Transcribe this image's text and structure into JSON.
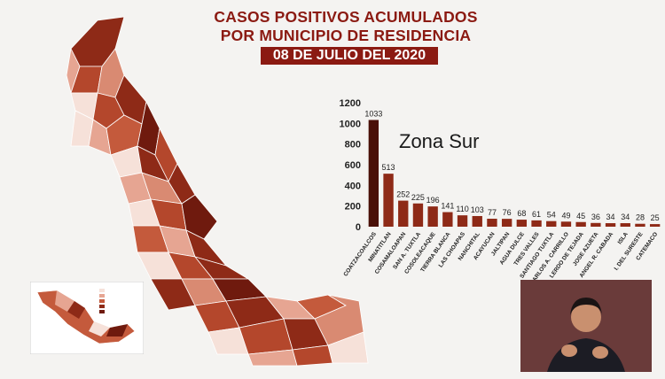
{
  "header": {
    "title_line1": "CASOS POSITIVOS ACUMULADOS",
    "title_line2": "POR MUNICIPIO DE RESIDENCIA",
    "date": "08 DE JULIO DEL 2020"
  },
  "chart_note": "Zona Sur",
  "colors": {
    "brand": "#8b1a12",
    "bar_top": "#4a1008",
    "bar": "#8e2a17",
    "map_dark": "#7a1f10",
    "map_mid": "#b4472c",
    "map_light": "#e6a592",
    "map_pale": "#f6e1d9"
  },
  "chart_data": {
    "type": "bar",
    "title": "Zona Sur",
    "ylim": [
      0,
      1200
    ],
    "yticks": [
      0,
      200,
      400,
      600,
      800,
      1000,
      1200
    ],
    "categories": [
      "COATZACOALCOS",
      "MINATITLAN",
      "COSAMALOAPAN",
      "SAN A. TUXTLA",
      "COSOLEACAQUE",
      "TIERRA BLANCA",
      "LAS CHOAPAS",
      "NANCHITAL",
      "ACAYUCAN",
      "JALTIPAN",
      "AGUA DULCE",
      "TRES VALLES",
      "SANTIAGO TUXTLA",
      "CARLOS A. CARRILLO",
      "LERDO DE TEJADA",
      "JOSE AZUETA",
      "ANGEL R. CABADA",
      "ISLA",
      "I. DEL SURESTE",
      "CATEMACO"
    ],
    "values": [
      1033,
      513,
      252,
      225,
      196,
      141,
      110,
      103,
      77,
      76,
      68,
      61,
      54,
      49,
      45,
      36,
      34,
      34,
      28,
      25
    ],
    "grid": false
  }
}
